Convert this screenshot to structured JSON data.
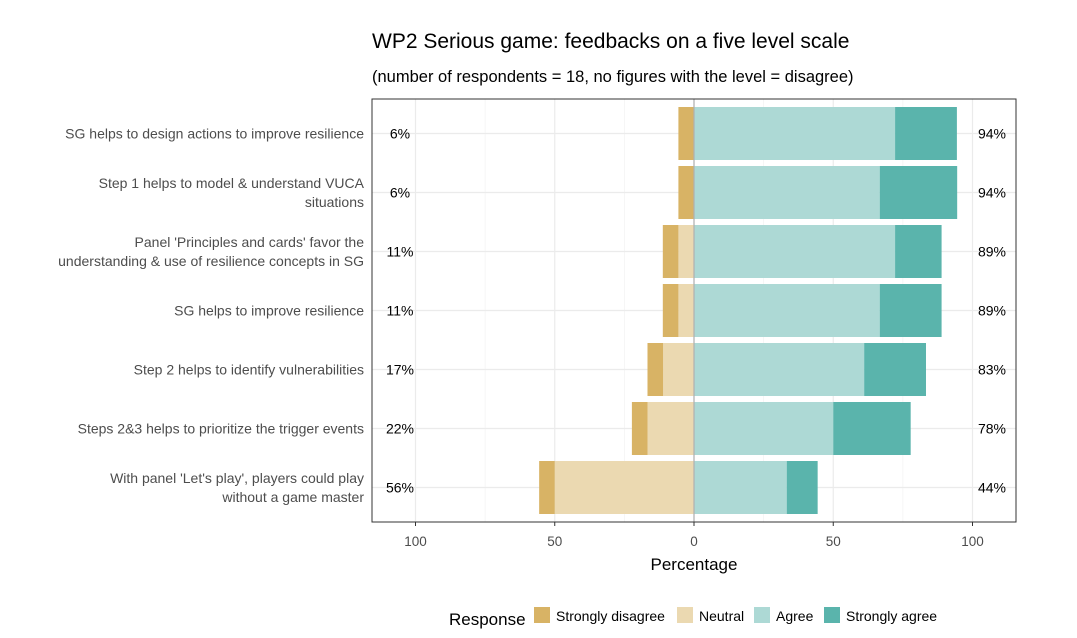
{
  "chart_data": {
    "type": "bar",
    "orientation": "horizontal-diverging",
    "title": "WP2 Serious game:  feedbacks on a five level  scale",
    "subtitle": "(number of respondents = 18, no figures with the level = disagree)",
    "xlabel": "Percentage",
    "xlim": [
      -115,
      115
    ],
    "xticks": [
      -100,
      -50,
      0,
      50,
      100
    ],
    "xtick_labels": [
      "100",
      "50",
      "0",
      "50",
      "100"
    ],
    "grid": true,
    "legend_title": "Response",
    "legend_position": "bottom",
    "categories": [
      "SG helps to design actions to improve resilience",
      "Step 1 helps to model & understand VUCA situations",
      "Panel 'Principles and cards' favor the understanding & use of resilience concepts in SG",
      "SG helps to improve resilience",
      "Step 2 helps to identify vulnerabilities",
      "Steps 2&3 helps to prioritize the trigger events",
      "With panel 'Let's play', players could play without a game master"
    ],
    "category_lines": [
      [
        "SG helps to design actions to improve resilience"
      ],
      [
        "Step 1 helps to model & understand VUCA",
        "situations"
      ],
      [
        "Panel 'Principles and cards' favor the",
        "understanding & use of resilience concepts in SG"
      ],
      [
        "SG helps to improve resilience"
      ],
      [
        "Step 2 helps to identify vulnerabilities"
      ],
      [
        "Steps 2&3 helps to prioritize the trigger events"
      ],
      [
        "With panel 'Let's play', players could play",
        "without a game master"
      ]
    ],
    "series": [
      {
        "name": "Strongly disagree",
        "color": "#d8b365",
        "side": "left",
        "values": [
          5.6,
          5.6,
          5.6,
          5.6,
          5.6,
          5.6,
          5.6
        ]
      },
      {
        "name": "Neutral",
        "color": "#ebd9b1",
        "side": "left",
        "values": [
          0,
          0,
          5.6,
          5.6,
          11.1,
          16.7,
          50.0
        ]
      },
      {
        "name": "Agree",
        "color": "#add9d5",
        "side": "right",
        "values": [
          72.2,
          66.7,
          72.2,
          66.7,
          61.1,
          50.0,
          33.3
        ]
      },
      {
        "name": "Strongly agree",
        "color": "#5ab4ac",
        "side": "right",
        "values": [
          22.2,
          27.8,
          16.7,
          22.2,
          22.2,
          27.8,
          11.1
        ]
      }
    ],
    "left_labels": [
      "6%",
      "6%",
      "11%",
      "11%",
      "17%",
      "22%",
      "56%"
    ],
    "right_labels": [
      "94%",
      "94%",
      "89%",
      "89%",
      "83%",
      "78%",
      "44%"
    ]
  }
}
